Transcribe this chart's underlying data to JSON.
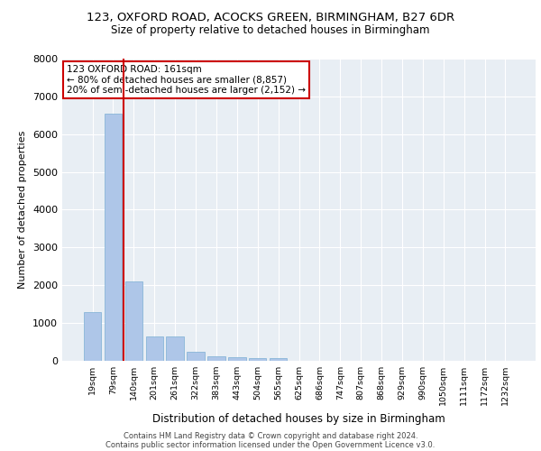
{
  "title_line1": "123, OXFORD ROAD, ACOCKS GREEN, BIRMINGHAM, B27 6DR",
  "title_line2": "Size of property relative to detached houses in Birmingham",
  "xlabel": "Distribution of detached houses by size in Birmingham",
  "ylabel": "Number of detached properties",
  "categories": [
    "19sqm",
    "79sqm",
    "140sqm",
    "201sqm",
    "261sqm",
    "322sqm",
    "383sqm",
    "443sqm",
    "504sqm",
    "565sqm",
    "625sqm",
    "686sqm",
    "747sqm",
    "807sqm",
    "868sqm",
    "929sqm",
    "990sqm",
    "1050sqm",
    "1111sqm",
    "1172sqm",
    "1232sqm"
  ],
  "values": [
    1300,
    6550,
    2100,
    650,
    650,
    250,
    130,
    100,
    70,
    70,
    0,
    0,
    0,
    0,
    0,
    0,
    0,
    0,
    0,
    0,
    0
  ],
  "bar_color": "#aec6e8",
  "bar_edge_color": "#7bafd4",
  "vline_color": "#cc0000",
  "annotation_text": "123 OXFORD ROAD: 161sqm\n← 80% of detached houses are smaller (8,857)\n20% of semi-detached houses are larger (2,152) →",
  "annotation_box_color": "white",
  "annotation_box_edgecolor": "#cc0000",
  "ylim": [
    0,
    8000
  ],
  "yticks": [
    0,
    1000,
    2000,
    3000,
    4000,
    5000,
    6000,
    7000,
    8000
  ],
  "background_color": "#e8eef4",
  "grid_color": "white",
  "footer_line1": "Contains HM Land Registry data © Crown copyright and database right 2024.",
  "footer_line2": "Contains public sector information licensed under the Open Government Licence v3.0."
}
